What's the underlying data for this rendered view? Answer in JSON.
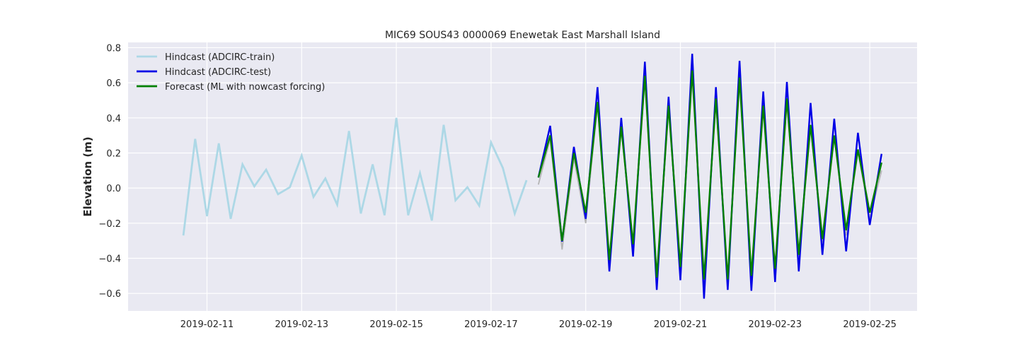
{
  "chart_data": {
    "type": "line",
    "title": "MIC69 SOUS43 0000069 Enewetak East Marshall Island",
    "xlabel": "",
    "ylabel": "Elevation (m)",
    "x_type": "date",
    "xlim": [
      "2019-02-09T08:00",
      "2019-02-26T00:00"
    ],
    "ylim": [
      -0.7,
      0.83
    ],
    "x_ticks": [
      "2019-02-11",
      "2019-02-13",
      "2019-02-15",
      "2019-02-17",
      "2019-02-19",
      "2019-02-21",
      "2019-02-23",
      "2019-02-25"
    ],
    "y_ticks": [
      -0.6,
      -0.4,
      -0.2,
      0.0,
      0.2,
      0.4,
      0.6,
      0.8
    ],
    "y_tick_labels": [
      "−0.6",
      "−0.4",
      "−0.2",
      "0.0",
      "0.2",
      "0.4",
      "0.6",
      "0.8"
    ],
    "grid": true,
    "legend_position": "top-left",
    "background_color": "#e9e9f2",
    "series": [
      {
        "name": "Hindcast (ADCIRC-train)",
        "color": "#add8e6",
        "in_legend": true,
        "x": [
          "2019-02-10T12:00",
          "2019-02-10T18:00",
          "2019-02-11T00:00",
          "2019-02-11T06:00",
          "2019-02-11T12:00",
          "2019-02-11T18:00",
          "2019-02-12T00:00",
          "2019-02-12T06:00",
          "2019-02-12T12:00",
          "2019-02-12T18:00",
          "2019-02-13T00:00",
          "2019-02-13T06:00",
          "2019-02-13T12:00",
          "2019-02-13T18:00",
          "2019-02-14T00:00",
          "2019-02-14T06:00",
          "2019-02-14T12:00",
          "2019-02-14T18:00",
          "2019-02-15T00:00",
          "2019-02-15T06:00",
          "2019-02-15T12:00",
          "2019-02-15T18:00",
          "2019-02-16T00:00",
          "2019-02-16T06:00",
          "2019-02-16T12:00",
          "2019-02-16T18:00",
          "2019-02-17T00:00",
          "2019-02-17T06:00",
          "2019-02-17T12:00",
          "2019-02-17T18:00"
        ],
        "y": [
          -0.27,
          0.28,
          -0.16,
          0.255,
          -0.175,
          0.135,
          0.01,
          0.105,
          -0.035,
          0.005,
          0.185,
          -0.05,
          0.055,
          -0.095,
          0.325,
          -0.145,
          0.135,
          -0.155,
          0.4,
          -0.155,
          0.085,
          -0.185,
          0.36,
          -0.07,
          0.005,
          -0.1,
          0.26,
          0.115,
          -0.145,
          0.045
        ]
      },
      {
        "name": "",
        "color": "#b4b4b4",
        "in_legend": false,
        "x": [
          "2019-02-18T00:00",
          "2019-02-18T06:00",
          "2019-02-18T12:00",
          "2019-02-18T18:00",
          "2019-02-19T00:00",
          "2019-02-19T06:00",
          "2019-02-19T12:00",
          "2019-02-19T18:00",
          "2019-02-20T00:00",
          "2019-02-20T06:00",
          "2019-02-20T12:00",
          "2019-02-20T18:00",
          "2019-02-21T00:00",
          "2019-02-21T06:00",
          "2019-02-21T12:00",
          "2019-02-21T18:00",
          "2019-02-22T00:00",
          "2019-02-22T06:00",
          "2019-02-22T12:00",
          "2019-02-22T18:00",
          "2019-02-23T00:00",
          "2019-02-23T06:00",
          "2019-02-23T12:00",
          "2019-02-23T18:00",
          "2019-02-24T00:00",
          "2019-02-24T06:00",
          "2019-02-24T12:00",
          "2019-02-24T18:00",
          "2019-02-25T00:00",
          "2019-02-25T06:00"
        ],
        "y": [
          0.02,
          0.28,
          -0.35,
          0.17,
          -0.2,
          0.48,
          -0.43,
          0.34,
          -0.33,
          0.62,
          -0.52,
          0.45,
          -0.46,
          0.66,
          -0.53,
          0.49,
          -0.53,
          0.63,
          -0.51,
          0.46,
          -0.48,
          0.49,
          -0.4,
          0.35,
          -0.31,
          0.29,
          -0.27,
          0.21,
          -0.17,
          0.1
        ]
      },
      {
        "name": "Hindcast (ADCIRC-test)",
        "color": "#0000e6",
        "in_legend": true,
        "x": [
          "2019-02-18T00:00",
          "2019-02-18T06:00",
          "2019-02-18T12:00",
          "2019-02-18T18:00",
          "2019-02-19T00:00",
          "2019-02-19T06:00",
          "2019-02-19T12:00",
          "2019-02-19T18:00",
          "2019-02-20T00:00",
          "2019-02-20T06:00",
          "2019-02-20T12:00",
          "2019-02-20T18:00",
          "2019-02-21T00:00",
          "2019-02-21T06:00",
          "2019-02-21T12:00",
          "2019-02-21T18:00",
          "2019-02-22T00:00",
          "2019-02-22T06:00",
          "2019-02-22T12:00",
          "2019-02-22T18:00",
          "2019-02-23T00:00",
          "2019-02-23T06:00",
          "2019-02-23T12:00",
          "2019-02-23T18:00",
          "2019-02-24T00:00",
          "2019-02-24T06:00",
          "2019-02-24T12:00",
          "2019-02-24T18:00",
          "2019-02-25T00:00",
          "2019-02-25T06:00"
        ],
        "y": [
          0.06,
          0.355,
          -0.305,
          0.235,
          -0.175,
          0.575,
          -0.475,
          0.4,
          -0.39,
          0.72,
          -0.58,
          0.52,
          -0.525,
          0.765,
          -0.63,
          0.575,
          -0.58,
          0.725,
          -0.585,
          0.55,
          -0.535,
          0.605,
          -0.475,
          0.485,
          -0.38,
          0.395,
          -0.36,
          0.315,
          -0.21,
          0.195
        ]
      },
      {
        "name": "Forecast (ML with nowcast forcing)",
        "color": "#008000",
        "in_legend": true,
        "x": [
          "2019-02-18T00:00",
          "2019-02-18T06:00",
          "2019-02-18T12:00",
          "2019-02-18T18:00",
          "2019-02-19T00:00",
          "2019-02-19T06:00",
          "2019-02-19T12:00",
          "2019-02-19T18:00",
          "2019-02-20T00:00",
          "2019-02-20T06:00",
          "2019-02-20T12:00",
          "2019-02-20T18:00",
          "2019-02-21T00:00",
          "2019-02-21T06:00",
          "2019-02-21T12:00",
          "2019-02-21T18:00",
          "2019-02-22T00:00",
          "2019-02-22T06:00",
          "2019-02-22T12:00",
          "2019-02-22T18:00",
          "2019-02-23T00:00",
          "2019-02-23T06:00",
          "2019-02-23T12:00",
          "2019-02-23T18:00",
          "2019-02-24T00:00",
          "2019-02-24T06:00",
          "2019-02-24T12:00",
          "2019-02-24T18:00",
          "2019-02-25T00:00",
          "2019-02-25T06:00"
        ],
        "y": [
          0.06,
          0.3,
          -0.3,
          0.2,
          -0.14,
          0.49,
          -0.41,
          0.35,
          -0.32,
          0.64,
          -0.51,
          0.47,
          -0.45,
          0.67,
          -0.52,
          0.51,
          -0.52,
          0.63,
          -0.5,
          0.47,
          -0.46,
          0.51,
          -0.38,
          0.36,
          -0.29,
          0.3,
          -0.24,
          0.22,
          -0.14,
          0.145
        ]
      }
    ]
  }
}
